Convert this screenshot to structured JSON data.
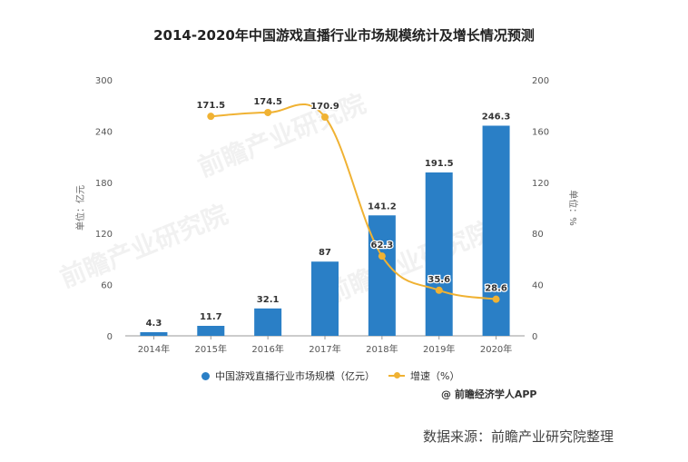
{
  "chart_data": {
    "type": "bar+line",
    "title": "2014-2020年中国游戏直播行业市场规模统计及增长情况预测",
    "categories": [
      "2014年",
      "2015年",
      "2016年",
      "2017年",
      "2018年",
      "2019年",
      "2020年"
    ],
    "series": [
      {
        "name": "中国游戏直播行业市场规模（亿元）",
        "type": "bar",
        "axis": "left",
        "values": [
          4.3,
          11.7,
          32.1,
          87,
          141.2,
          191.5,
          246.3
        ],
        "labels": [
          "4.3",
          "11.7",
          "32.1",
          "87",
          "141.2",
          "191.5",
          "246.3"
        ],
        "color": "#2a7fc6"
      },
      {
        "name": "增速（%）",
        "type": "line",
        "axis": "right",
        "values": [
          null,
          171.5,
          174.5,
          170.9,
          62.3,
          35.6,
          28.6
        ],
        "labels": [
          "",
          "171.5",
          "174.5",
          "170.9",
          "62.3",
          "35.6",
          "28.6"
        ],
        "color": "#f0b233"
      }
    ],
    "y_left": {
      "label": "单位：亿元",
      "min": 0,
      "max": 300,
      "ticks": [
        "0",
        "60",
        "120",
        "180",
        "240",
        "300"
      ]
    },
    "y_right": {
      "label": "单位：%",
      "min": 0,
      "max": 200,
      "ticks": [
        "0",
        "40",
        "80",
        "120",
        "160",
        "200"
      ]
    },
    "grid": false,
    "legend_position": "bottom"
  },
  "legend": {
    "bar_label": "中国游戏直播行业市场规模（亿元）",
    "line_label": "增速（%）"
  },
  "credit": "@ 前瞻经济学人APP",
  "source": "数据来源：前瞻产业研究院整理",
  "watermark": "前瞻产业研究院"
}
